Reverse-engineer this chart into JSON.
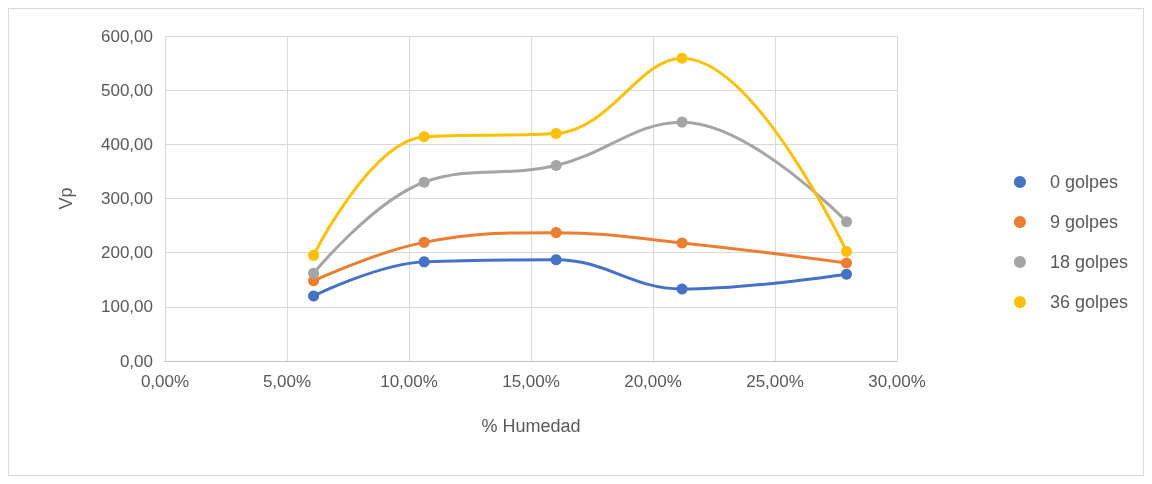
{
  "chart_data": {
    "type": "line",
    "xlabel": "% Humedad",
    "ylabel": "Vp",
    "xlim": [
      0,
      30
    ],
    "xticks": [
      {
        "value": 0,
        "label": "0,00%"
      },
      {
        "value": 5,
        "label": "5,00%"
      },
      {
        "value": 10,
        "label": "10,00%"
      },
      {
        "value": 15,
        "label": "15,00%"
      },
      {
        "value": 20,
        "label": "20,00%"
      },
      {
        "value": 25,
        "label": "25,00%"
      },
      {
        "value": 30,
        "label": "30,00%"
      }
    ],
    "ylim": [
      0,
      600
    ],
    "yticks": [
      {
        "value": 0,
        "label": "0,00"
      },
      {
        "value": 100,
        "label": "100,00"
      },
      {
        "value": 200,
        "label": "200,00"
      },
      {
        "value": 300,
        "label": "300,00"
      },
      {
        "value": 400,
        "label": "400,00"
      },
      {
        "value": 500,
        "label": "500,00"
      },
      {
        "value": 600,
        "label": "600,00"
      }
    ],
    "x": [
      6.09,
      10.62,
      16.03,
      21.19,
      27.93
    ],
    "series": [
      {
        "name": "0 golpes",
        "color": "#4472c4",
        "values": [
          120,
          183,
          187,
          133,
          160
        ]
      },
      {
        "name": "9 golpes",
        "color": "#ed7d31",
        "values": [
          148,
          219,
          237,
          218,
          181
        ]
      },
      {
        "name": "18 golpes",
        "color": "#a5a5a5",
        "values": [
          162,
          330,
          361,
          441,
          257
        ]
      },
      {
        "name": "36 golpes",
        "color": "#ffc000",
        "values": [
          195,
          414,
          420,
          559,
          202
        ]
      }
    ],
    "grid": true,
    "legend": "right",
    "marker": "circle",
    "line_style": "solid"
  }
}
